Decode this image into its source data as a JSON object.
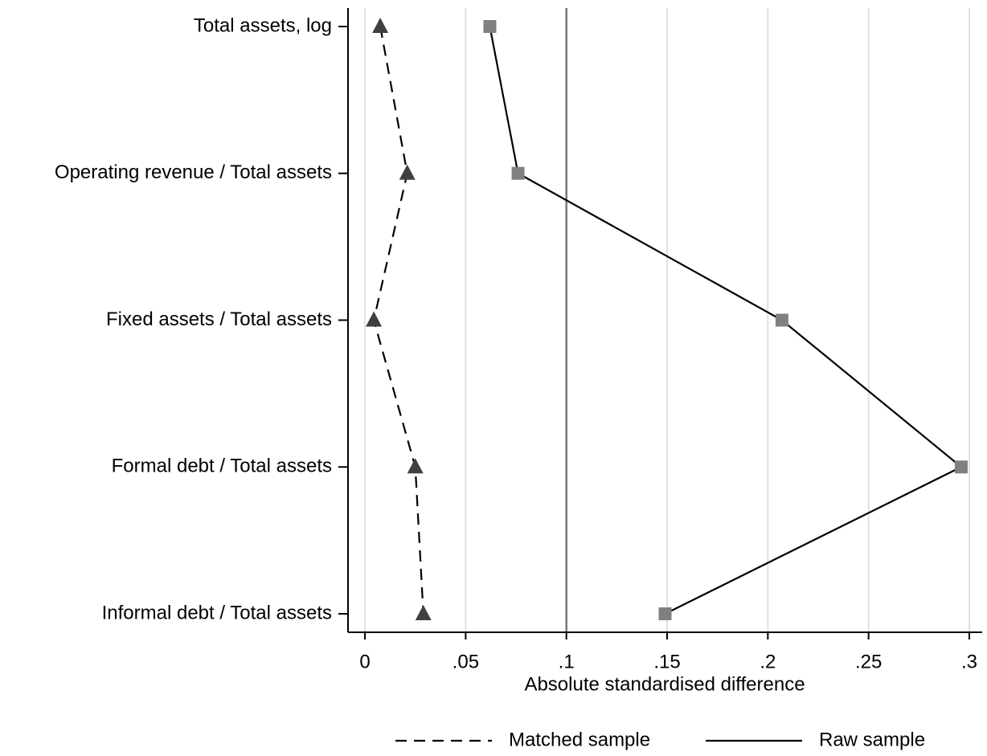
{
  "chart_data": {
    "type": "dot",
    "orientation": "horizontal",
    "categories": [
      "Total assets, log",
      "Operating revenue / Total assets",
      "Fixed assets / Total assets",
      "Formal debt / Total assets",
      "Informal debt / Total assets"
    ],
    "series": [
      {
        "name": "Matched sample",
        "color": "#404040",
        "line_color": "#000000",
        "dash": "dashed",
        "marker": "triangle",
        "values": [
          0.0076,
          0.021,
          0.0044,
          0.025,
          0.029
        ]
      },
      {
        "name": "Raw sample",
        "color": "#808080",
        "line_color": "#000000",
        "dash": "solid",
        "marker": "square",
        "values": [
          0.062,
          0.076,
          0.207,
          0.296,
          0.149
        ]
      }
    ],
    "xlabel": "Absolute standardised difference",
    "xlim": [
      -0.0084,
      0.3064
    ],
    "xticks": [
      0,
      {
        "value": 0.05,
        "label": ".05"
      },
      {
        "value": 0.1,
        "label": ".1"
      },
      {
        "value": 0.15,
        "label": ".15"
      },
      {
        "value": 0.2,
        "label": ".2"
      },
      {
        "value": 0.25,
        "label": ".25"
      },
      {
        "value": 0.3,
        "label": ".3"
      }
    ],
    "reference_line": 0.1,
    "grid": true,
    "legend": "bottom"
  }
}
